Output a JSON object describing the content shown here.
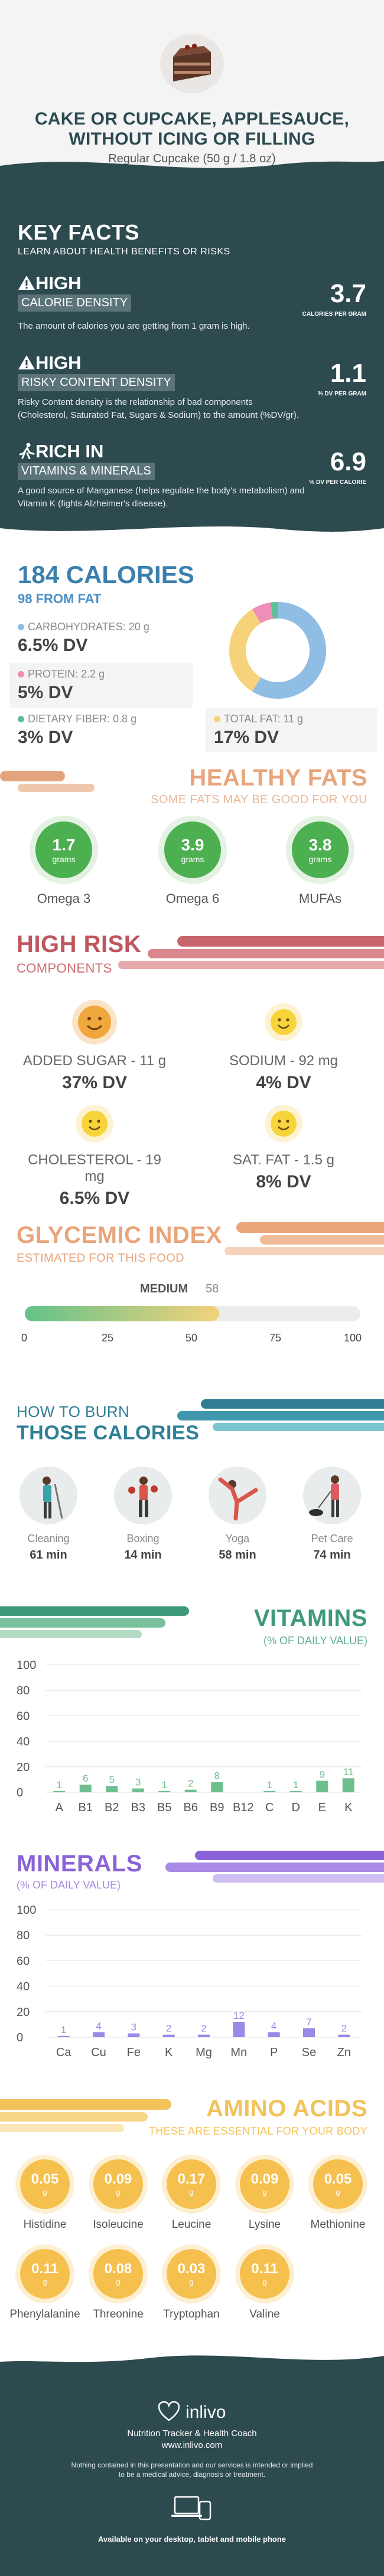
{
  "header": {
    "title_line1": "CAKE OR CUPCAKE, APPLESAUCE,",
    "title_line2": "WITHOUT ICING OR FILLING",
    "serving": "Regular Cupcake (50 g / 1.8 oz)"
  },
  "key_facts": {
    "title": "KEY FACTS",
    "subtitle": "LEARN ABOUT HEALTH BENEFITS OR RISKS",
    "items": [
      {
        "level": "HIGH",
        "label": "CALORIE DENSITY",
        "value": "3.7",
        "unit": "CALORIES PER GRAM",
        "icon": "warning-icon",
        "desc": "The amount of calories you are getting from 1 gram is high."
      },
      {
        "level": "HIGH",
        "label": "RISKY CONTENT DENSITY",
        "value": "1.1",
        "unit": "% DV PER GRAM",
        "icon": "warning-icon",
        "desc1": "Risky Content density is the relationship of bad components",
        "desc2": "(Cholesterol, Saturated Fat, Sugars & Sodium) to the amount (%DV/gr)."
      },
      {
        "level": "RICH  IN",
        "label": "VITAMINS & MINERALS",
        "value": "6.9",
        "unit": "% DV PER CALORIE",
        "icon": "runner-icon",
        "desc1": "A good source of Manganese (helps regulate the body's metabolism) and",
        "desc2": "Vitamin K (fights Alzheimer's disease)."
      }
    ]
  },
  "calories": {
    "title": "184 CALORIES",
    "from_fat": "98 FROM FAT",
    "carbs": {
      "label": "CARBOHYDRATES: 20 g",
      "dv": "6.5% DV",
      "color": "#8fbde3"
    },
    "protein": {
      "label": "PROTEIN: 2.2 g",
      "dv": "5% DV",
      "color": "#ee8fb8"
    },
    "fiber": {
      "label": "DIETARY FIBER: 0.8 g",
      "dv": "3% DV",
      "color": "#5cbf95"
    },
    "fat": {
      "label": "TOTAL FAT: 11 g",
      "dv": "17% DV",
      "color": "#f6d27a"
    },
    "donut": [
      {
        "name": "carbohydrates",
        "value": 20,
        "color": "#8fbde3"
      },
      {
        "name": "total fat",
        "value": 11,
        "color": "#f6d27a"
      },
      {
        "name": "protein",
        "value": 2.2,
        "color": "#ee8fb8"
      },
      {
        "name": "dietary fiber",
        "value": 0.8,
        "color": "#5cbf95"
      }
    ]
  },
  "fats": {
    "title": "HEALTHY FATS",
    "subtitle": "SOME FATS MAY BE GOOD FOR YOU",
    "items": [
      {
        "value": "1.7",
        "unit": "grams",
        "label": "Omega 3"
      },
      {
        "value": "3.9",
        "unit": "grams",
        "label": "Omega 6"
      },
      {
        "value": "3.8",
        "unit": "grams",
        "label": "MUFAs"
      }
    ]
  },
  "risk": {
    "title": "HIGH RISK",
    "subtitle": "COMPONENTS",
    "items": [
      {
        "label": "ADDED SUGAR - 11 g",
        "dv": "37% DV"
      },
      {
        "label": "SODIUM - 92 mg",
        "dv": "4% DV"
      },
      {
        "label": "CHOLESTEROL - 19 mg",
        "dv": "6.5% DV"
      },
      {
        "label": "SAT. FAT - 1.5 g",
        "dv": "8% DV"
      }
    ]
  },
  "glycemic": {
    "title": "GLYCEMIC INDEX",
    "subtitle": "ESTIMATED FOR THIS FOOD",
    "level": "MEDIUM",
    "value": 58,
    "value_label": "58",
    "ticks": [
      "0",
      "25",
      "50",
      "75",
      "100"
    ]
  },
  "burn": {
    "title1": "HOW TO BURN",
    "title2": "THOSE CALORIES",
    "items": [
      {
        "label": "Cleaning",
        "time": "61 min",
        "icon": "cleaning-icon"
      },
      {
        "label": "Boxing",
        "time": "14 min",
        "icon": "boxing-icon"
      },
      {
        "label": "Yoga",
        "time": "58 min",
        "icon": "yoga-icon"
      },
      {
        "label": "Pet Care",
        "time": "74 min",
        "icon": "pet-care-icon"
      }
    ]
  },
  "vitamins": {
    "title": "VITAMINS",
    "subtitle": "(% OF DAILY VALUE)"
  },
  "minerals": {
    "title": "MINERALS",
    "subtitle": "(% OF DAILY VALUE)"
  },
  "chart_data": [
    {
      "type": "bar",
      "title": "VITAMINS",
      "subtitle": "(% OF DAILY VALUE)",
      "categories": [
        "A",
        "B1",
        "B2",
        "B3",
        "B5",
        "B6",
        "B9",
        "B12",
        "C",
        "D",
        "E",
        "K"
      ],
      "values": [
        1,
        6,
        5,
        3,
        1,
        2,
        8,
        0,
        1,
        1,
        9,
        11
      ],
      "ylim": [
        0,
        100
      ],
      "yticks": [
        "0",
        "20",
        "40",
        "60",
        "80",
        "100"
      ],
      "bar_color": "#6fbf8e"
    },
    {
      "type": "bar",
      "title": "MINERALS",
      "subtitle": "(% OF DAILY VALUE)",
      "categories": [
        "Ca",
        "Cu",
        "Fe",
        "K",
        "Mg",
        "Mn",
        "P",
        "Se",
        "Zn"
      ],
      "values": [
        1,
        4,
        3,
        2,
        2,
        12,
        4,
        7,
        2
      ],
      "ylim": [
        0,
        100
      ],
      "yticks": [
        "0",
        "20",
        "40",
        "60",
        "80",
        "100"
      ],
      "bar_color": "#9c88e6"
    }
  ],
  "amino": {
    "title": "AMINO ACIDS",
    "subtitle": "THESE ARE ESSENTIAL FOR YOUR BODY",
    "items": [
      {
        "value": "0.05",
        "unit": "g",
        "label": "Histidine"
      },
      {
        "value": "0.09",
        "unit": "g",
        "label": "Isoleucine"
      },
      {
        "value": "0.17",
        "unit": "g",
        "label": "Leucine"
      },
      {
        "value": "0.09",
        "unit": "g",
        "label": "Lysine"
      },
      {
        "value": "0.05",
        "unit": "g",
        "label": "Methionine"
      },
      {
        "value": "0.11",
        "unit": "g",
        "label": "Phenylalanine"
      },
      {
        "value": "0.08",
        "unit": "g",
        "label": "Threonine"
      },
      {
        "value": "0.03",
        "unit": "g",
        "label": "Tryptophan"
      },
      {
        "value": "0.11",
        "unit": "g",
        "label": "Valine"
      }
    ]
  },
  "footer": {
    "brand": "inlivo",
    "tagline": "Nutrition Tracker & Health Coach",
    "url": "www.inlivo.com",
    "disclaimer1": "Nothing contained in this presentation and our services is intended or implied",
    "disclaimer2": "to be a medical advice, diagnosis or treatment.",
    "available": "Available on your desktop, tablet and mobile phone"
  }
}
